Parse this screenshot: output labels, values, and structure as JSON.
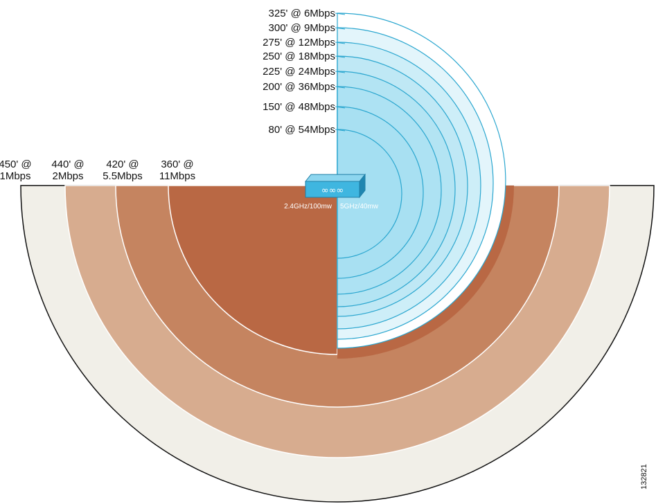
{
  "colors": {
    "band_1mbps": "#f1efe8",
    "band_2mbps": "#d7ac8f",
    "band_5_5mbps": "#c58460",
    "band_11mbps": "#b96844",
    "band_5ghz": "#a4dff2",
    "ring_stroke_5ghz": "#2aa6cf",
    "ring_fill_5ghz_outer": "#ffffff",
    "device_body": "#3fb6e0"
  },
  "band_24ghz": {
    "radio_label": "2.4GHz/100mw",
    "rings": [
      {
        "range": "450' @",
        "rate": "1Mbps",
        "feet": 450
      },
      {
        "range": "440' @",
        "rate": "2Mbps",
        "feet": 440
      },
      {
        "range": "420' @",
        "rate": "5.5Mbps",
        "feet": 420
      },
      {
        "range": "360' @",
        "rate": "11Mbps",
        "feet": 360
      }
    ]
  },
  "band_5ghz": {
    "radio_label": "5GHz/40mw",
    "rings": [
      {
        "label": "325' @ 6Mbps",
        "feet": 325
      },
      {
        "label": "300' @ 9Mbps",
        "feet": 300
      },
      {
        "label": "275' @ 12Mbps",
        "feet": 275
      },
      {
        "label": "250' @ 18Mbps",
        "feet": 250
      },
      {
        "label": "225' @ 24Mbps",
        "feet": 225
      },
      {
        "label": "200' @ 36Mbps",
        "feet": 200
      },
      {
        "label": "150' @ 48Mbps",
        "feet": 150
      },
      {
        "label": "80' @ 54Mbps",
        "feet": 80
      }
    ]
  },
  "access_point": {
    "icon": "access-point-icon",
    "led_glyph": "∞∞∞"
  },
  "figure_id": "132821"
}
